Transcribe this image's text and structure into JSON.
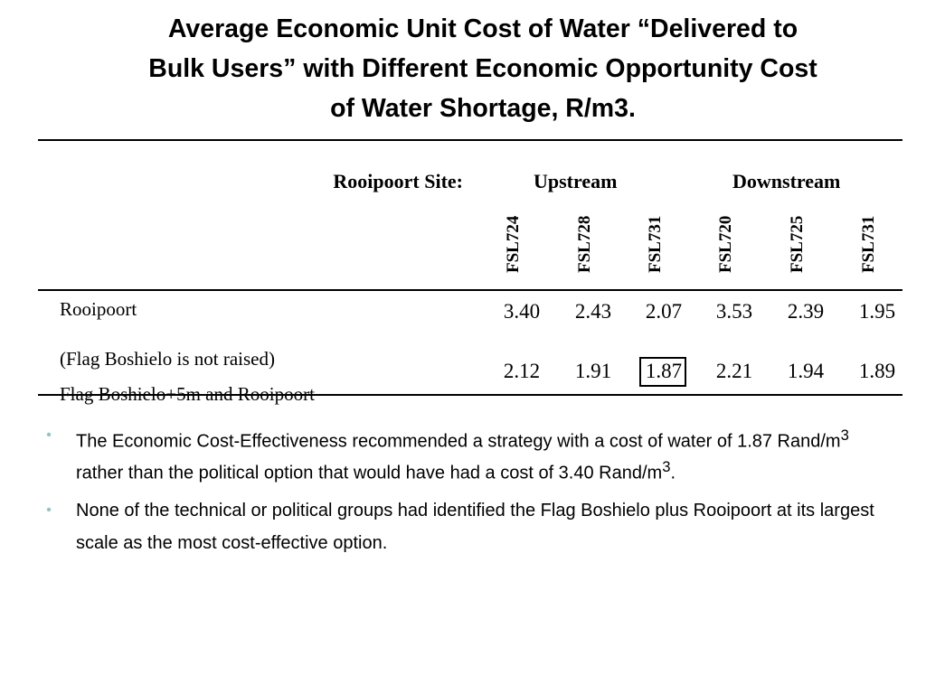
{
  "title_lines": [
    "Average Economic Unit Cost of Water “Delivered to",
    "Bulk Users” with Different Economic Opportunity Cost",
    "of Water Shortage, R/m3."
  ],
  "table": {
    "site_label": "Rooipoort Site:",
    "groups": [
      "Upstream",
      "Downstream"
    ],
    "columns": [
      "FSL724",
      "FSL728",
      "FSL731",
      "FSL720",
      "FSL725",
      "FSL731"
    ],
    "rows": [
      {
        "label": "Rooipoort",
        "values": [
          "3.40",
          "2.43",
          "2.07",
          "3.53",
          "2.39",
          "1.95"
        ]
      },
      {
        "label": "(Flag Boshielo is not raised)",
        "label2": "Flag Boshielo+5m and Rooipoort",
        "values": [
          "2.12",
          "1.91",
          "1.87",
          "2.21",
          "1.94",
          "1.89"
        ]
      }
    ]
  },
  "bullets": {
    "b1_prefix": "The Economic Cost-Effectiveness recommended a strategy with a cost of water of 1.87 Rand/m",
    "b1_mid": " rather than the political option that would have had a cost of 3.40 Rand/m",
    "b1_end": ".",
    "sup": "3",
    "b2": "None of the technical or political groups had identified the Flag Boshielo plus Rooipoort at its largest scale as the most cost-effective option."
  },
  "bullet_glyph": "•"
}
